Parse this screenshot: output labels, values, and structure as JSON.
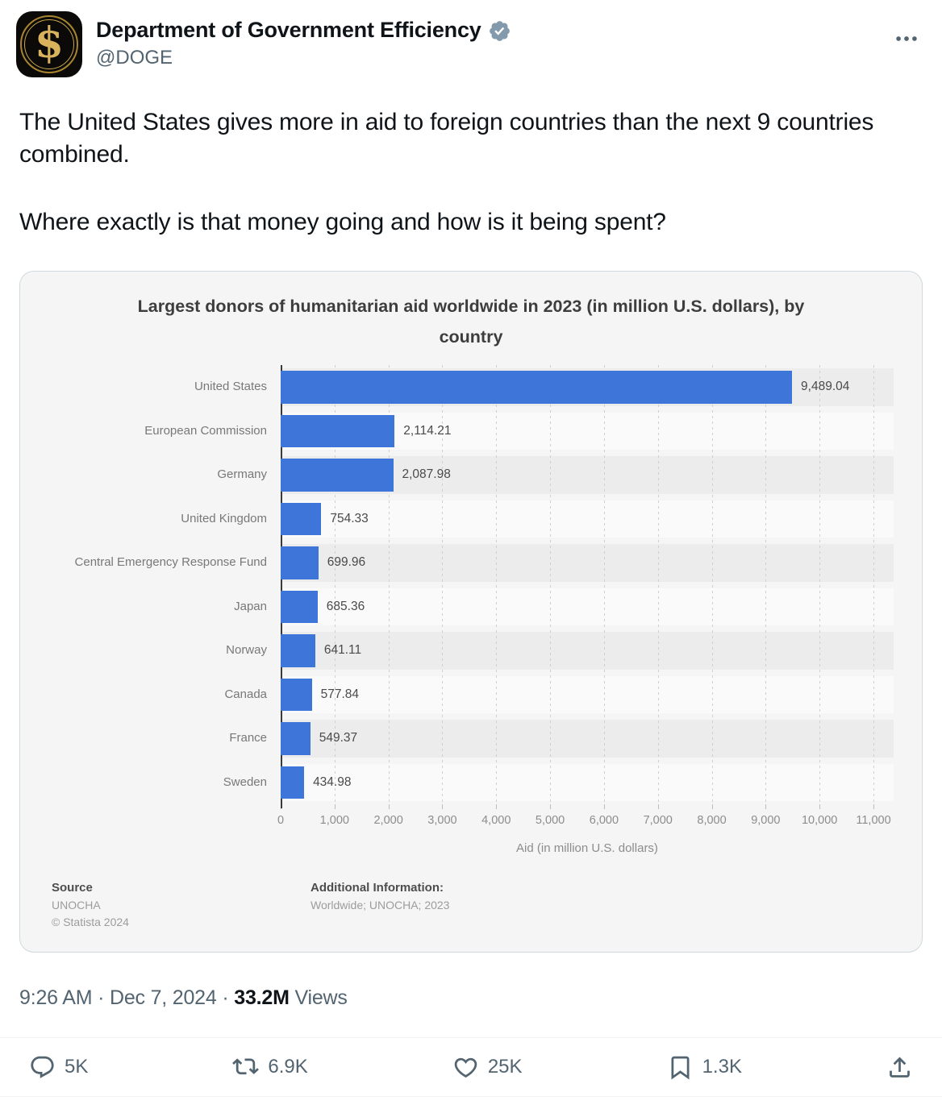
{
  "header": {
    "display_name": "Department of Government Efficiency",
    "handle": "@DOGE",
    "avatar_symbol": "$"
  },
  "tweet": {
    "paragraph1": "The United States gives more in aid to foreign countries than the next 9 countries combined.",
    "paragraph2": "Where exactly is that money going and how is it being spent?"
  },
  "chart_data": {
    "type": "bar",
    "orientation": "horizontal",
    "title": "Largest donors of humanitarian aid worldwide in 2023 (in million U.S. dollars), by country",
    "categories": [
      "United States",
      "European Commission",
      "Germany",
      "United Kingdom",
      "Central Emergency Response Fund",
      "Japan",
      "Norway",
      "Canada",
      "France",
      "Sweden"
    ],
    "values": [
      9489.04,
      2114.21,
      2087.98,
      754.33,
      699.96,
      685.36,
      641.11,
      577.84,
      549.37,
      434.98
    ],
    "value_labels": [
      "9,489.04",
      "2,114.21",
      "2,087.98",
      "754.33",
      "699.96",
      "685.36",
      "641.11",
      "577.84",
      "549.37",
      "434.98"
    ],
    "xlabel": "Aid (in million U.S. dollars)",
    "xlim": [
      0,
      11000
    ],
    "xticks": [
      0,
      1000,
      2000,
      3000,
      4000,
      5000,
      6000,
      7000,
      8000,
      9000,
      10000,
      11000
    ],
    "xtick_labels": [
      "0",
      "1,000",
      "2,000",
      "3,000",
      "4,000",
      "5,000",
      "6,000",
      "7,000",
      "8,000",
      "9,000",
      "10,000",
      "11,000"
    ],
    "bar_color": "#3d76d8",
    "grid": "dashed-vertical",
    "legend": "none"
  },
  "chart_footer": {
    "source_label": "Source",
    "source_value": "UNOCHA",
    "copyright": "© Statista 2024",
    "additional_label": "Additional Information:",
    "additional_value": "Worldwide; UNOCHA; 2023"
  },
  "meta": {
    "time": "9:26 AM",
    "sep1": "·",
    "date": "Dec 7, 2024",
    "sep2": "·",
    "views_count": "33.2M",
    "views_label": "Views"
  },
  "actions": {
    "reply_count": "5K",
    "repost_count": "6.9K",
    "like_count": "25K",
    "bookmark_count": "1.3K"
  },
  "colors": {
    "bar_blue": "#3d76d8",
    "verified_badge_gray": "#829aab",
    "action_gray": "#536471",
    "text_primary": "#0f1419"
  }
}
